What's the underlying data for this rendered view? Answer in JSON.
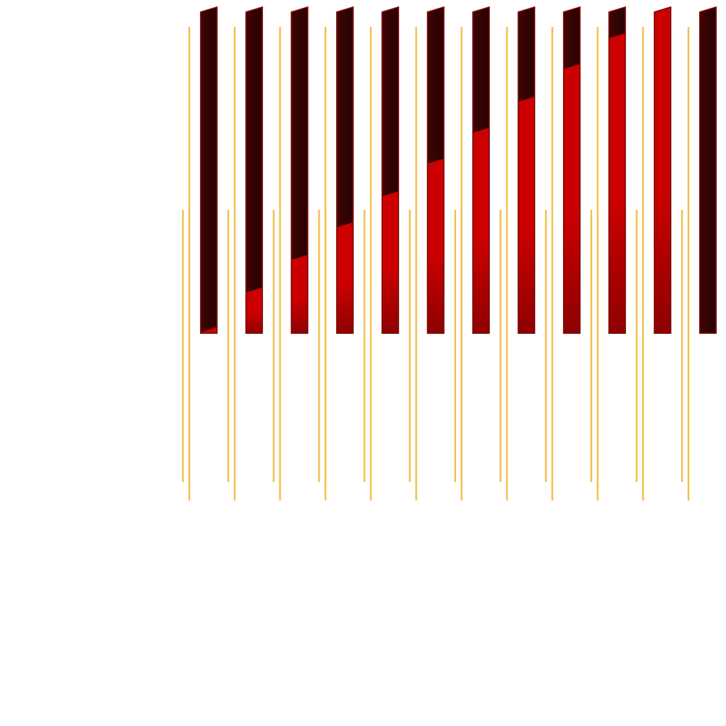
{
  "sheet": {
    "kind": "progress-bar-sprite-frames",
    "frame_count": 12,
    "frames": [
      {
        "fill_fraction": 0.0
      },
      {
        "fill_fraction": 0.125
      },
      {
        "fill_fraction": 0.225
      },
      {
        "fill_fraction": 0.325
      },
      {
        "fill_fraction": 0.42
      },
      {
        "fill_fraction": 0.52
      },
      {
        "fill_fraction": 0.615
      },
      {
        "fill_fraction": 0.71
      },
      {
        "fill_fraction": 0.81
      },
      {
        "fill_fraction": 0.905
      },
      {
        "fill_fraction": 1.0
      },
      {
        "fill_fraction": 0.0
      }
    ],
    "colors": {
      "fill": "#cc0000",
      "fill_dark": "#8f0000",
      "empty": "#2a0000",
      "empty_top": "#3d0505",
      "border": "#7a0c0c",
      "guide_line": "#f2c04a"
    }
  }
}
